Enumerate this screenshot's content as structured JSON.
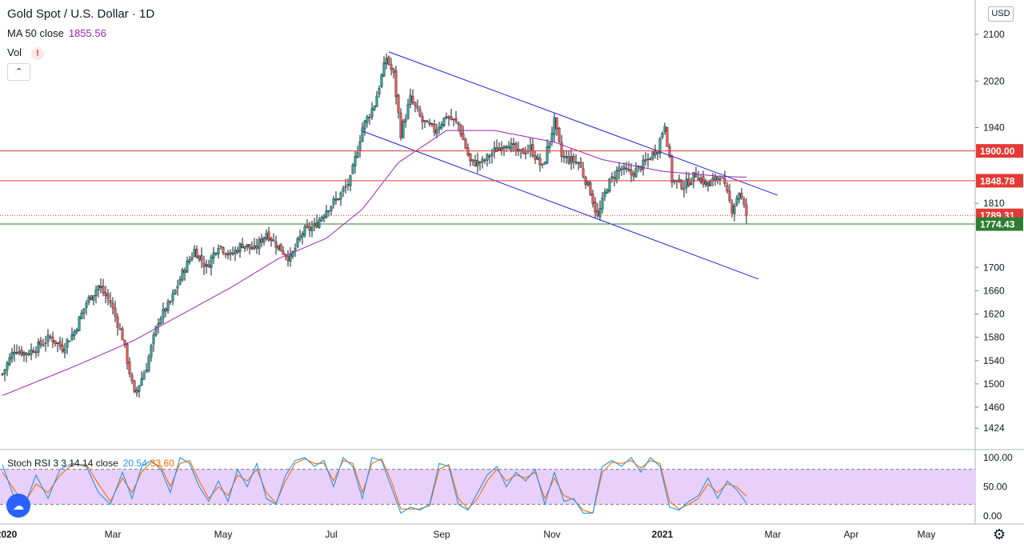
{
  "header": {
    "title": "Gold Spot / U.S. Dollar · 1D",
    "ma_label": "MA 50 close",
    "ma_value": "1855.56",
    "vol_label": "Vol",
    "vol_warning": "!",
    "collapse_icon": "chevron-up-icon"
  },
  "currency_button": "USD",
  "stoch": {
    "label": "Stoch RSI 3 3 14 14 close",
    "k_value": "20.54",
    "d_value": "33.60"
  },
  "colors": {
    "up": "#26a69a",
    "down": "#ef5350",
    "candle_wick": "#131722",
    "ma": "#9c27b0",
    "channel": "#1e22d6",
    "resistance": "#e53935",
    "support": "#2e7d32",
    "stoch_k": "#2196f3",
    "stoch_d": "#ff6d00",
    "stoch_band": "#e9d0fb"
  },
  "chart_data": {
    "type": "candlestick",
    "title": "Gold Spot / U.S. Dollar · 1D",
    "price_ticks": [
      2100,
      2020,
      1940,
      1810,
      1700,
      1660,
      1620,
      1580,
      1540,
      1500,
      1460,
      1424
    ],
    "stoch_ticks": [
      100,
      50,
      0
    ],
    "x_ticks": [
      "2020",
      "Mar",
      "May",
      "Jul",
      "Sep",
      "Nov",
      "2021",
      "Mar",
      "Apr",
      "May"
    ],
    "horizontal_levels": [
      {
        "value": 1900.0,
        "label": "1900.00",
        "color": "red"
      },
      {
        "value": 1848.78,
        "label": "1848.78",
        "color": "red"
      },
      {
        "value": 1789.31,
        "label": "1789.31",
        "color": "red",
        "style": "dotted"
      },
      {
        "value": 1774.43,
        "label": "1774.43",
        "color": "green"
      }
    ],
    "ohlc_segments": [
      [
        0,
        1517
      ],
      [
        5,
        1560
      ],
      [
        10,
        1552
      ],
      [
        15,
        1565
      ],
      [
        20,
        1580
      ],
      [
        25,
        1562
      ],
      [
        30,
        1590
      ],
      [
        35,
        1640
      ],
      [
        40,
        1668
      ],
      [
        45,
        1640
      ],
      [
        50,
        1580
      ],
      [
        55,
        1480
      ],
      [
        60,
        1530
      ],
      [
        65,
        1610
      ],
      [
        70,
        1640
      ],
      [
        75,
        1690
      ],
      [
        80,
        1730
      ],
      [
        85,
        1700
      ],
      [
        90,
        1740
      ],
      [
        95,
        1720
      ],
      [
        100,
        1740
      ],
      [
        105,
        1730
      ],
      [
        110,
        1760
      ],
      [
        115,
        1735
      ],
      [
        120,
        1715
      ],
      [
        125,
        1760
      ],
      [
        130,
        1770
      ],
      [
        135,
        1800
      ],
      [
        140,
        1820
      ],
      [
        145,
        1850
      ],
      [
        150,
        1940
      ],
      [
        155,
        1980
      ],
      [
        160,
        2060
      ],
      [
        163,
        2030
      ],
      [
        166,
        1930
      ],
      [
        170,
        1990
      ],
      [
        175,
        1950
      ],
      [
        180,
        1935
      ],
      [
        185,
        1960
      ],
      [
        190,
        1945
      ],
      [
        195,
        1880
      ],
      [
        200,
        1880
      ],
      [
        205,
        1900
      ],
      [
        210,
        1915
      ],
      [
        215,
        1895
      ],
      [
        220,
        1905
      ],
      [
        225,
        1870
      ],
      [
        230,
        1950
      ],
      [
        233,
        1890
      ],
      [
        240,
        1880
      ],
      [
        245,
        1830
      ],
      [
        248,
        1785
      ],
      [
        252,
        1840
      ],
      [
        257,
        1870
      ],
      [
        262,
        1860
      ],
      [
        268,
        1880
      ],
      [
        273,
        1905
      ],
      [
        276,
        1948
      ],
      [
        279,
        1850
      ],
      [
        284,
        1840
      ],
      [
        289,
        1860
      ],
      [
        294,
        1840
      ],
      [
        299,
        1860
      ],
      [
        304,
        1800
      ],
      [
        307,
        1830
      ],
      [
        310,
        1790
      ]
    ],
    "ma50": [
      [
        0,
        1480
      ],
      [
        30,
        1530
      ],
      [
        55,
        1575
      ],
      [
        75,
        1620
      ],
      [
        95,
        1665
      ],
      [
        115,
        1715
      ],
      [
        135,
        1750
      ],
      [
        150,
        1800
      ],
      [
        165,
        1880
      ],
      [
        185,
        1935
      ],
      [
        205,
        1935
      ],
      [
        230,
        1915
      ],
      [
        250,
        1885
      ],
      [
        275,
        1865
      ],
      [
        300,
        1856
      ],
      [
        310,
        1855
      ]
    ],
    "channel_upper": [
      [
        161,
        2070
      ],
      [
        323,
        1824
      ]
    ],
    "channel_lower": [
      [
        150,
        1934
      ],
      [
        315,
        1680
      ]
    ],
    "stoch_k": [
      [
        0,
        88
      ],
      [
        5,
        30
      ],
      [
        9,
        15
      ],
      [
        14,
        70
      ],
      [
        19,
        30
      ],
      [
        24,
        80
      ],
      [
        29,
        90
      ],
      [
        35,
        85
      ],
      [
        40,
        40
      ],
      [
        45,
        20
      ],
      [
        50,
        75
      ],
      [
        54,
        30
      ],
      [
        58,
        85
      ],
      [
        62,
        95
      ],
      [
        66,
        80
      ],
      [
        70,
        40
      ],
      [
        74,
        100
      ],
      [
        78,
        90
      ],
      [
        82,
        50
      ],
      [
        86,
        25
      ],
      [
        90,
        60
      ],
      [
        94,
        25
      ],
      [
        98,
        80
      ],
      [
        102,
        50
      ],
      [
        106,
        90
      ],
      [
        110,
        30
      ],
      [
        114,
        20
      ],
      [
        118,
        70
      ],
      [
        122,
        95
      ],
      [
        126,
        100
      ],
      [
        130,
        85
      ],
      [
        134,
        95
      ],
      [
        138,
        50
      ],
      [
        142,
        100
      ],
      [
        146,
        85
      ],
      [
        150,
        30
      ],
      [
        154,
        100
      ],
      [
        158,
        95
      ],
      [
        162,
        50
      ],
      [
        166,
        5
      ],
      [
        170,
        15
      ],
      [
        174,
        10
      ],
      [
        178,
        20
      ],
      [
        182,
        90
      ],
      [
        186,
        85
      ],
      [
        190,
        20
      ],
      [
        194,
        10
      ],
      [
        198,
        40
      ],
      [
        202,
        70
      ],
      [
        206,
        85
      ],
      [
        210,
        50
      ],
      [
        214,
        75
      ],
      [
        218,
        60
      ],
      [
        222,
        80
      ],
      [
        226,
        20
      ],
      [
        230,
        75
      ],
      [
        234,
        25
      ],
      [
        238,
        30
      ],
      [
        242,
        5
      ],
      [
        246,
        5
      ],
      [
        250,
        85
      ],
      [
        254,
        95
      ],
      [
        258,
        85
      ],
      [
        262,
        100
      ],
      [
        266,
        75
      ],
      [
        270,
        100
      ],
      [
        274,
        85
      ],
      [
        278,
        15
      ],
      [
        282,
        10
      ],
      [
        286,
        25
      ],
      [
        290,
        35
      ],
      [
        294,
        65
      ],
      [
        298,
        30
      ],
      [
        302,
        60
      ],
      [
        306,
        45
      ],
      [
        310,
        22
      ]
    ],
    "stoch_d": [
      [
        0,
        75
      ],
      [
        5,
        45
      ],
      [
        9,
        20
      ],
      [
        14,
        55
      ],
      [
        19,
        40
      ],
      [
        24,
        70
      ],
      [
        29,
        88
      ],
      [
        35,
        88
      ],
      [
        40,
        55
      ],
      [
        45,
        25
      ],
      [
        50,
        65
      ],
      [
        54,
        40
      ],
      [
        58,
        75
      ],
      [
        62,
        92
      ],
      [
        66,
        85
      ],
      [
        70,
        50
      ],
      [
        74,
        90
      ],
      [
        78,
        95
      ],
      [
        82,
        60
      ],
      [
        86,
        30
      ],
      [
        90,
        50
      ],
      [
        94,
        35
      ],
      [
        98,
        70
      ],
      [
        102,
        60
      ],
      [
        106,
        80
      ],
      [
        110,
        40
      ],
      [
        114,
        22
      ],
      [
        118,
        60
      ],
      [
        122,
        90
      ],
      [
        126,
        98
      ],
      [
        130,
        90
      ],
      [
        134,
        90
      ],
      [
        138,
        60
      ],
      [
        142,
        95
      ],
      [
        146,
        90
      ],
      [
        150,
        40
      ],
      [
        154,
        90
      ],
      [
        158,
        98
      ],
      [
        162,
        60
      ],
      [
        166,
        12
      ],
      [
        170,
        12
      ],
      [
        174,
        12
      ],
      [
        178,
        18
      ],
      [
        182,
        80
      ],
      [
        186,
        88
      ],
      [
        190,
        30
      ],
      [
        194,
        12
      ],
      [
        198,
        30
      ],
      [
        202,
        60
      ],
      [
        206,
        80
      ],
      [
        210,
        60
      ],
      [
        214,
        70
      ],
      [
        218,
        65
      ],
      [
        222,
        75
      ],
      [
        226,
        30
      ],
      [
        230,
        65
      ],
      [
        234,
        35
      ],
      [
        238,
        28
      ],
      [
        242,
        10
      ],
      [
        246,
        5
      ],
      [
        250,
        75
      ],
      [
        254,
        92
      ],
      [
        258,
        90
      ],
      [
        262,
        95
      ],
      [
        266,
        82
      ],
      [
        270,
        95
      ],
      [
        274,
        90
      ],
      [
        278,
        25
      ],
      [
        282,
        12
      ],
      [
        286,
        20
      ],
      [
        290,
        30
      ],
      [
        294,
        55
      ],
      [
        298,
        40
      ],
      [
        302,
        55
      ],
      [
        306,
        50
      ],
      [
        310,
        34
      ]
    ]
  }
}
